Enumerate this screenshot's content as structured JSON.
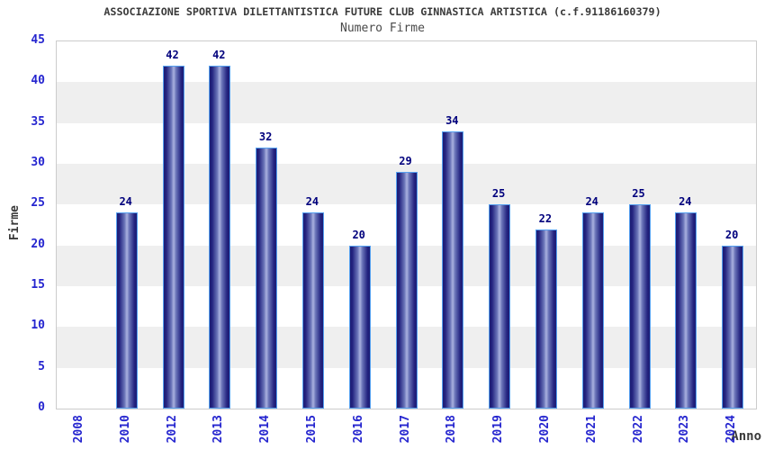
{
  "chart_data": {
    "type": "bar",
    "title": "ASSOCIAZIONE SPORTIVA DILETTANTISTICA FUTURE CLUB GINNASTICA ARTISTICA (c.f.91186160379)",
    "subtitle": "Numero Firme",
    "xlabel": "Anno",
    "ylabel": "Firme",
    "categories": [
      "2008",
      "2010",
      "2012",
      "2013",
      "2014",
      "2015",
      "2016",
      "2017",
      "2018",
      "2019",
      "2020",
      "2021",
      "2022",
      "2023",
      "2024"
    ],
    "values": [
      null,
      24,
      42,
      42,
      32,
      24,
      20,
      29,
      34,
      25,
      22,
      24,
      25,
      24,
      20
    ],
    "ylim": [
      0,
      45
    ],
    "ytick_step": 5,
    "grid": "alternating-horizontal-bands",
    "legend": "none",
    "colors": {
      "bar_edge": "#1d1d74",
      "bar_center": "#aab2e0",
      "bar_border": "#55a0f0",
      "tick_label": "#2525cf",
      "value_label": "#00007d",
      "band_gray": "#efefef",
      "band_white": "#ffffff",
      "plot_border": "#cccccc",
      "title_text": "#3a3a3a"
    }
  }
}
